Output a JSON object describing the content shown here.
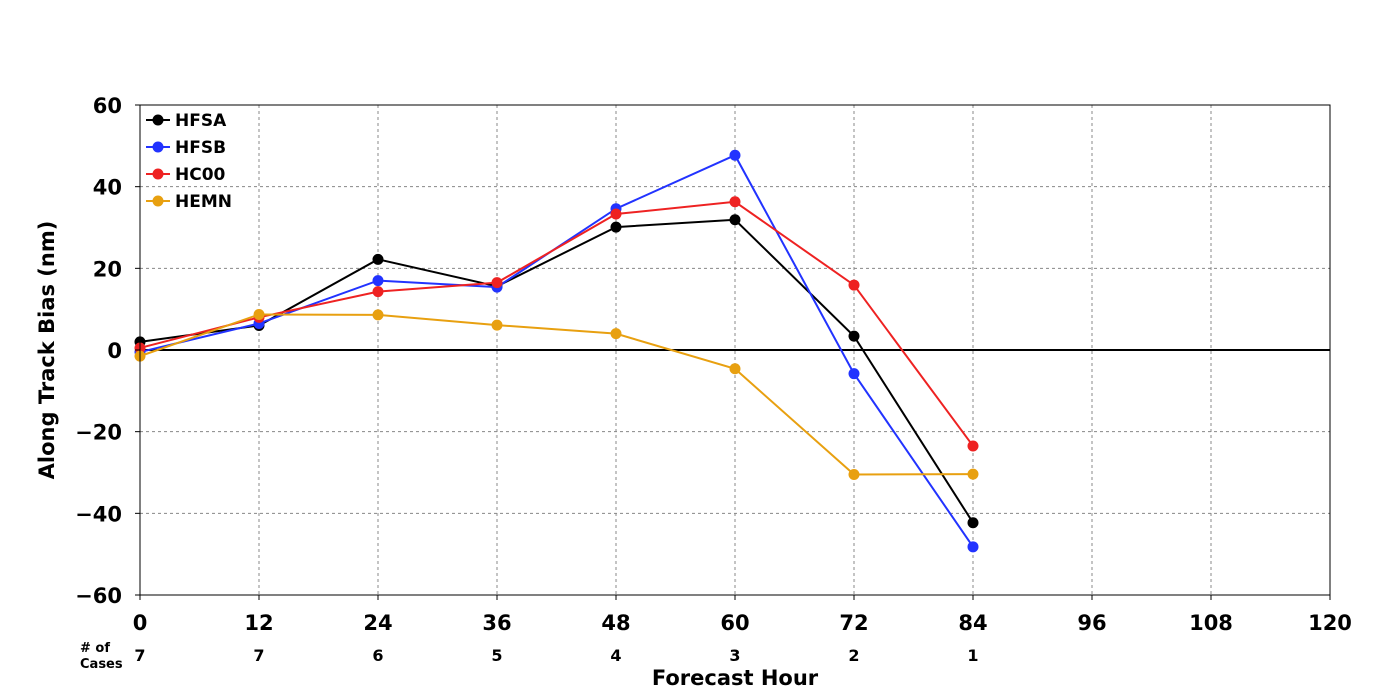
{
  "chart_data": {
    "type": "line",
    "title": "",
    "xlabel": "Forecast Hour",
    "ylabel": "Along Track Bias (nm)",
    "xlim": [
      0,
      120
    ],
    "ylim": [
      -60,
      60
    ],
    "xticks": [
      0,
      12,
      24,
      36,
      48,
      60,
      72,
      84,
      96,
      108,
      120
    ],
    "yticks": [
      60,
      40,
      20,
      0,
      -20,
      -40,
      -60
    ],
    "ytick_labels": [
      "60",
      "40",
      "20",
      "0",
      "−20",
      "−40",
      "−60"
    ],
    "grid": true,
    "legend_position": "top-left",
    "cases_label_line1": "# of",
    "cases_label_line2": "Cases",
    "cases": [
      {
        "x": 0,
        "n": "7"
      },
      {
        "x": 12,
        "n": "7"
      },
      {
        "x": 24,
        "n": "6"
      },
      {
        "x": 36,
        "n": "5"
      },
      {
        "x": 48,
        "n": "4"
      },
      {
        "x": 60,
        "n": "3"
      },
      {
        "x": 72,
        "n": "2"
      },
      {
        "x": 84,
        "n": "1"
      }
    ],
    "x": [
      0,
      12,
      24,
      36,
      48,
      60,
      72,
      84
    ],
    "series": [
      {
        "name": "HFSA",
        "color": "#000000",
        "values": [
          2.0,
          6.0,
          22.2,
          15.6,
          30.1,
          31.9,
          3.4,
          -42.3
        ]
      },
      {
        "name": "HFSB",
        "color": "#2233ff",
        "values": [
          -0.5,
          6.5,
          17.0,
          15.4,
          34.6,
          47.7,
          -5.8,
          -48.2
        ]
      },
      {
        "name": "HC00",
        "color": "#ee2222",
        "values": [
          0.5,
          8.0,
          14.3,
          16.5,
          33.3,
          36.3,
          15.9,
          -23.5
        ]
      },
      {
        "name": "HEMN",
        "color": "#e8a010",
        "values": [
          -1.5,
          8.7,
          8.6,
          6.1,
          4.0,
          -4.6,
          -30.5,
          -30.4
        ]
      }
    ]
  }
}
